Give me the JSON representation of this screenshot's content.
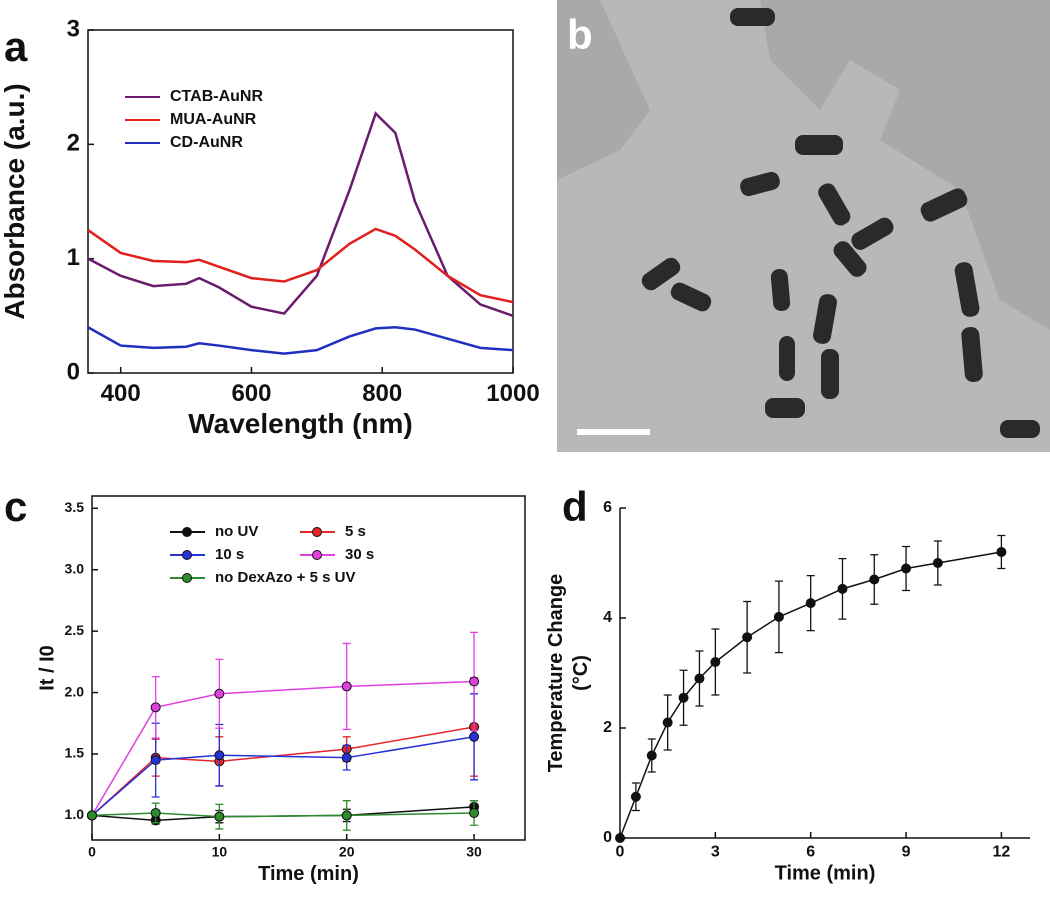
{
  "chart_data": [
    {
      "type": "line",
      "panel_label": "a",
      "x_label": "Wavelength (nm)",
      "y_label": "Absorbance (a.u.)",
      "x": [
        350,
        400,
        450,
        500,
        520,
        550,
        600,
        650,
        700,
        750,
        790,
        820,
        850,
        900,
        950,
        1000
      ],
      "series": [
        {
          "name": "CTAB-AuNR",
          "color": "#6a1b6e",
          "values": [
            1.0,
            0.85,
            0.76,
            0.78,
            0.83,
            0.75,
            0.58,
            0.52,
            0.85,
            1.6,
            2.27,
            2.1,
            1.5,
            0.85,
            0.6,
            0.5
          ]
        },
        {
          "name": "MUA-AuNR",
          "color": "#e0201b",
          "values": [
            1.25,
            1.05,
            0.98,
            0.97,
            0.99,
            0.93,
            0.83,
            0.8,
            0.9,
            1.13,
            1.26,
            1.2,
            1.08,
            0.85,
            0.68,
            0.62
          ]
        },
        {
          "name": "CD-AuNR",
          "color": "#1f2fbf",
          "values": [
            0.4,
            0.24,
            0.22,
            0.23,
            0.26,
            0.24,
            0.2,
            0.17,
            0.2,
            0.32,
            0.39,
            0.4,
            0.38,
            0.3,
            0.22,
            0.2
          ]
        }
      ],
      "xlim": [
        350,
        1000
      ],
      "xticks": [
        400,
        600,
        800,
        1000
      ],
      "ylim": [
        0,
        3
      ],
      "yticks": [
        0,
        1,
        2,
        3
      ],
      "markers": false,
      "box": true
    },
    {
      "type": "line",
      "panel_label": "c",
      "x_label": "Time (min)",
      "y_label": "It / I0",
      "x": [
        0,
        5,
        10,
        20,
        30
      ],
      "series": [
        {
          "name": "no UV",
          "color": "#111111",
          "values": [
            1.0,
            0.96,
            0.99,
            1.0,
            1.07
          ],
          "errors": [
            0,
            0.03,
            0.05,
            0.05,
            0.05
          ]
        },
        {
          "name": "5 s",
          "color": "#e3262a",
          "values": [
            1.0,
            1.47,
            1.44,
            1.54,
            1.72
          ],
          "errors": [
            0,
            0.15,
            0.2,
            0.1,
            0.4
          ]
        },
        {
          "name": "10 s",
          "color": "#2432d8",
          "values": [
            1.0,
            1.45,
            1.49,
            1.47,
            1.64
          ],
          "errors": [
            0,
            0.3,
            0.25,
            0.1,
            0.35
          ]
        },
        {
          "name": "30 s",
          "color": "#e040e0",
          "values": [
            1.0,
            1.88,
            1.99,
            2.05,
            2.09
          ],
          "errors": [
            0,
            0.25,
            0.28,
            0.35,
            0.4
          ]
        },
        {
          "name": "no DexAzo + 5 s UV",
          "color": "#2e8b2e",
          "values": [
            1.0,
            1.02,
            0.99,
            1.0,
            1.02
          ],
          "errors": [
            0,
            0.08,
            0.1,
            0.12,
            0.1
          ]
        }
      ],
      "xlim": [
        0,
        34
      ],
      "xticks": [
        0,
        10,
        20,
        30
      ],
      "ylim": [
        0.8,
        3.6
      ],
      "yticks": [
        {
          "value": 1,
          "label": "1.0"
        },
        {
          "value": 1.5,
          "label": "1.5"
        },
        {
          "value": 2,
          "label": "2.0"
        },
        {
          "value": 2.5,
          "label": "2.5"
        },
        {
          "value": 3,
          "label": "3.0"
        },
        {
          "value": 3.5,
          "label": "3.5"
        }
      ],
      "markers": true,
      "box": true
    },
    {
      "type": "line",
      "panel_label": "d",
      "x_label": "Time (min)",
      "y_label": [
        "Temperature Change",
        "(°C)"
      ],
      "x": [
        0,
        0.5,
        1,
        1.5,
        2,
        2.5,
        3,
        4,
        5,
        6,
        7,
        8,
        9,
        10,
        12
      ],
      "series": [
        {
          "color": "#111111",
          "values": [
            0,
            0.75,
            1.5,
            2.1,
            2.55,
            2.9,
            3.2,
            3.65,
            4.02,
            4.27,
            4.53,
            4.7,
            4.9,
            5.0,
            5.2
          ],
          "errors": [
            0,
            0.25,
            0.3,
            0.5,
            0.5,
            0.5,
            0.6,
            0.65,
            0.65,
            0.5,
            0.55,
            0.45,
            0.4,
            0.4,
            0.3
          ]
        }
      ],
      "xlim": [
        0,
        12.9
      ],
      "xticks": [
        0,
        3,
        6,
        9,
        12
      ],
      "ylim": [
        0,
        6
      ],
      "yticks": [
        0,
        2,
        4,
        6
      ],
      "markers": true,
      "box": false
    }
  ],
  "image_panel": {
    "label": "b"
  }
}
